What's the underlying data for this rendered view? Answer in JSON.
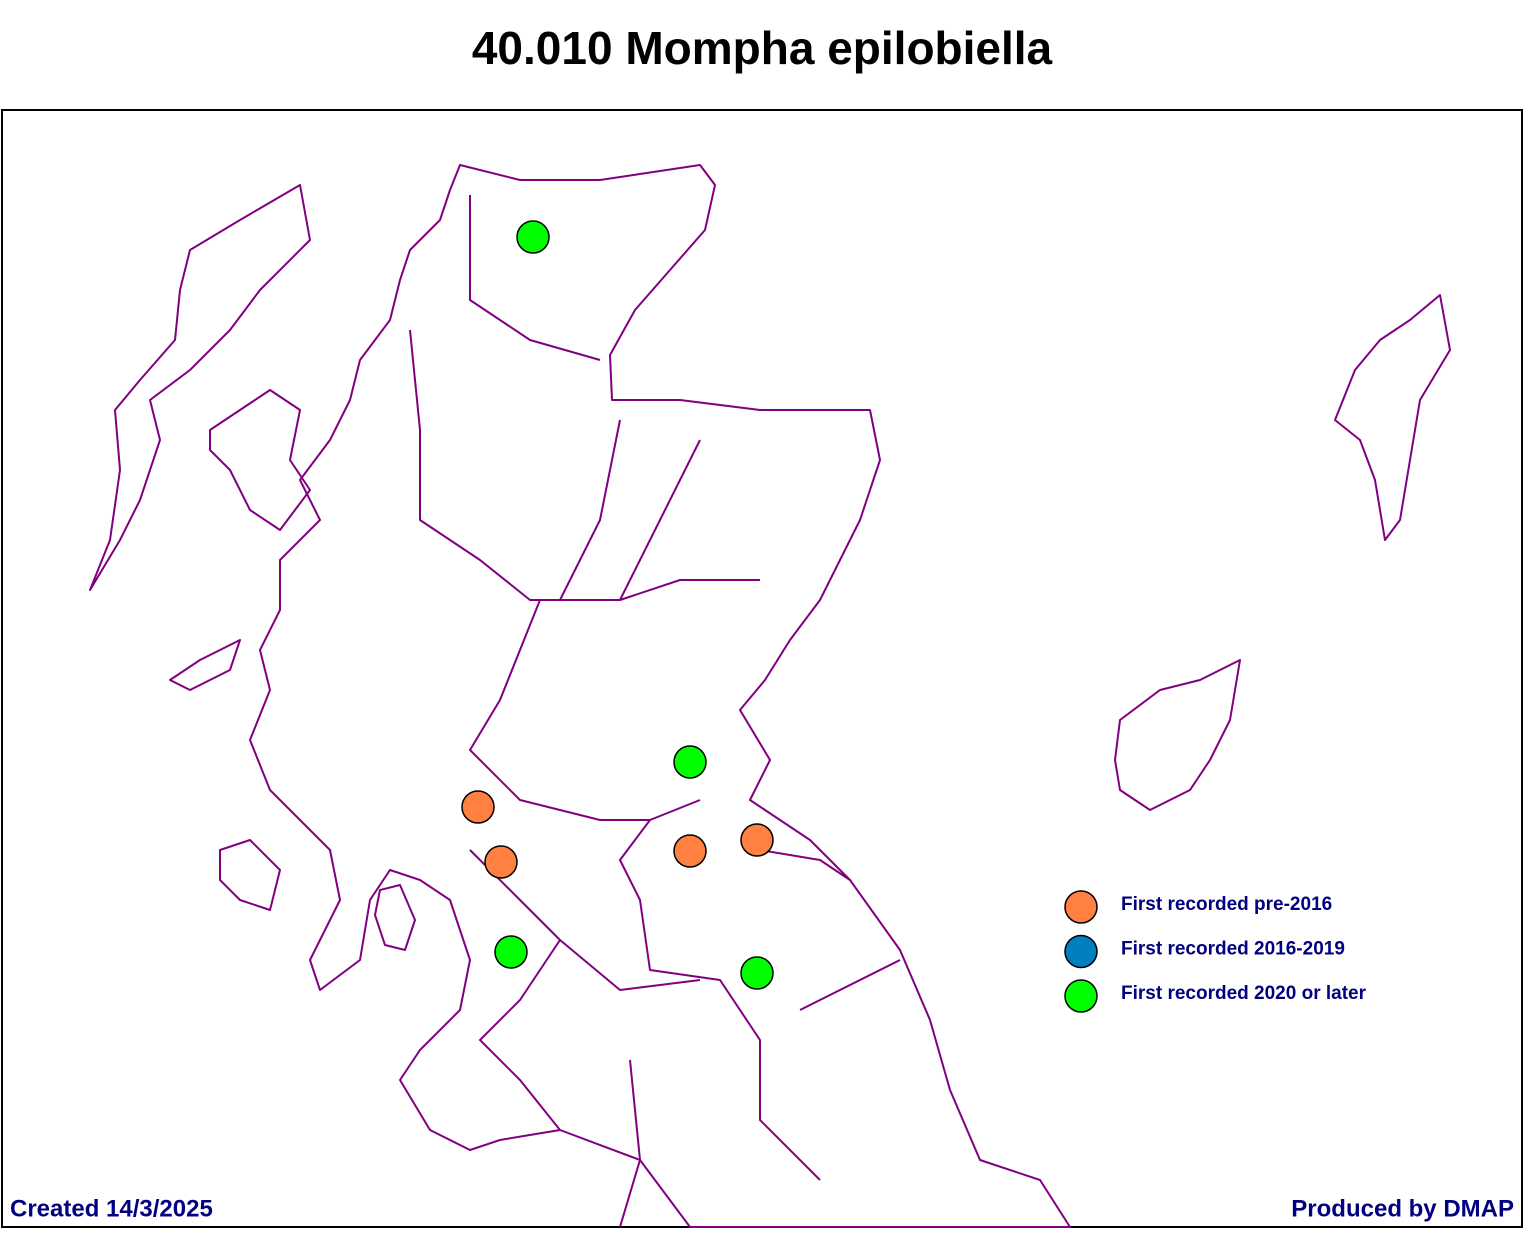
{
  "header": {
    "title": "40.010 Mompha epilobiella"
  },
  "legend": {
    "items": [
      {
        "label": "First recorded pre-2016",
        "color": "#ff8040"
      },
      {
        "label": "First recorded 2016-2019",
        "color": "#0080c0"
      },
      {
        "label": "First recorded 2020 or later",
        "color": "#00ff00"
      }
    ]
  },
  "footer": {
    "created": "Created 14/3/2025",
    "producer": "Produced by DMAP"
  }
}
